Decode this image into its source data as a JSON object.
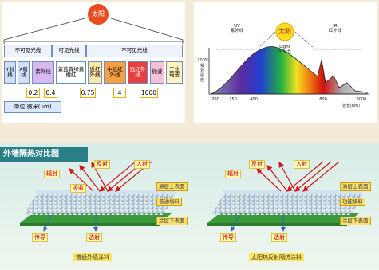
{
  "spectrum_bands": {
    "sun": "太阳",
    "groups": [
      "不可见光线",
      "可见光线",
      "不可见光线"
    ],
    "bands": [
      "Y射线",
      "X射线",
      "紫外线",
      "紫蓝青绿黄橙红",
      "近红外线",
      "中远红外线",
      "远红外线",
      "微波",
      "工业电波"
    ],
    "boundaries": [
      "0.2",
      "0.4",
      "0.75",
      "4",
      "1000"
    ],
    "unit": "单位:微米(μm)"
  },
  "spectrum_chart": {
    "sun": "太阳",
    "regions": [
      {
        "code": "UV",
        "name": "紫外线"
      },
      {
        "code": "Light",
        "name": "可见光"
      },
      {
        "code": "IR",
        "name": "红外线"
      }
    ],
    "y_label": "100%",
    "y_title": "相对强度",
    "x_ticks": [
      "200",
      "250",
      "400",
      "800",
      "3000"
    ],
    "x_title": "波长(nm)"
  },
  "comparison": {
    "title": "外墙隔热对比图",
    "panels": [
      {
        "radiation": "辐射",
        "reflection": "反射",
        "incidence": "入射",
        "absorption": "吸收",
        "top_surface": "涂层上表面",
        "filler": "普通填料",
        "conduction": "传导",
        "transmission": "透射",
        "bottom_surface": "涂层下表面",
        "caption": "普通外墙涂料"
      },
      {
        "radiation": "辐射",
        "reflection": "反射",
        "incidence": "入射",
        "top_surface": "涂层上表面",
        "filler": "功能填料",
        "conduction": "传导",
        "transmission": "透射",
        "bottom_surface": "涂层下表面",
        "caption": "太阳热反射隔热涂料"
      }
    ]
  }
}
